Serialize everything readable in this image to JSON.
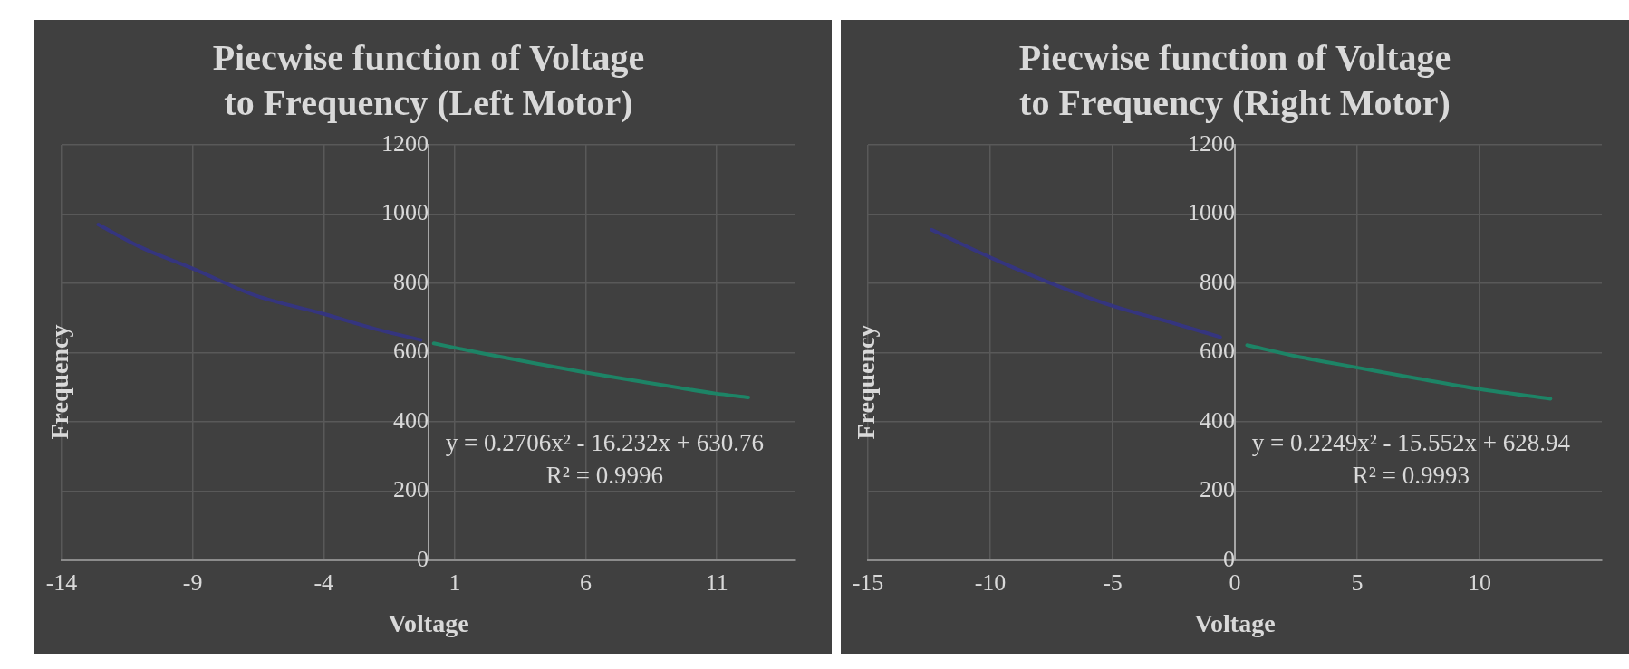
{
  "chart_data": [
    {
      "type": "line",
      "title": "Piecwise function of Voltage to Frequency (Left Motor)",
      "xlabel": "Voltage",
      "ylabel": "Frequency",
      "xlim": [
        -14,
        14
      ],
      "xticks": [
        -14,
        -9,
        -4,
        1,
        6,
        11
      ],
      "ylim": [
        0,
        1200
      ],
      "yticks": [
        0,
        200,
        400,
        600,
        800,
        1000,
        1200
      ],
      "grid": true,
      "marker": "none",
      "line_style": "solid",
      "annotations": [
        "y = 0.2706x² - 16.232x + 630.76",
        "R² = 0.9996"
      ],
      "series": [
        {
          "color": "#35357f",
          "x": [
            -12.6,
            -11,
            -9,
            -6.6,
            -4,
            -2,
            -0.3
          ],
          "values": [
            970,
            905,
            843,
            765,
            712,
            668,
            637
          ]
        },
        {
          "color": "#1d8466",
          "x": [
            0.2,
            2,
            4,
            5.9,
            8,
            10.9,
            12.2
          ],
          "values": [
            627,
            599,
            570,
            544,
            518,
            483,
            471
          ]
        }
      ]
    },
    {
      "type": "line",
      "title": "Piecwise function of Voltage to Frequency (Right Motor)",
      "xlabel": "Voltage",
      "ylabel": "Frequency",
      "xlim": [
        -15,
        15
      ],
      "xticks": [
        -15,
        -10,
        -5,
        0,
        5,
        10
      ],
      "ylim": [
        0,
        1200
      ],
      "yticks": [
        0,
        200,
        400,
        600,
        800,
        1000,
        1200
      ],
      "grid": true,
      "marker": "none",
      "line_style": "solid",
      "annotations": [
        "y = 0.2249x² - 15.552x + 628.94",
        "R² = 0.9993"
      ],
      "series": [
        {
          "color": "#35357f",
          "x": [
            -12.4,
            -10,
            -7.5,
            -5,
            -2.5,
            -0.6
          ],
          "values": [
            955,
            875,
            800,
            735,
            685,
            645
          ]
        },
        {
          "color": "#1d8466",
          "x": [
            0.5,
            2.5,
            5,
            7.5,
            10,
            12.9
          ],
          "values": [
            622,
            590,
            557,
            525,
            495,
            467
          ]
        }
      ]
    }
  ]
}
